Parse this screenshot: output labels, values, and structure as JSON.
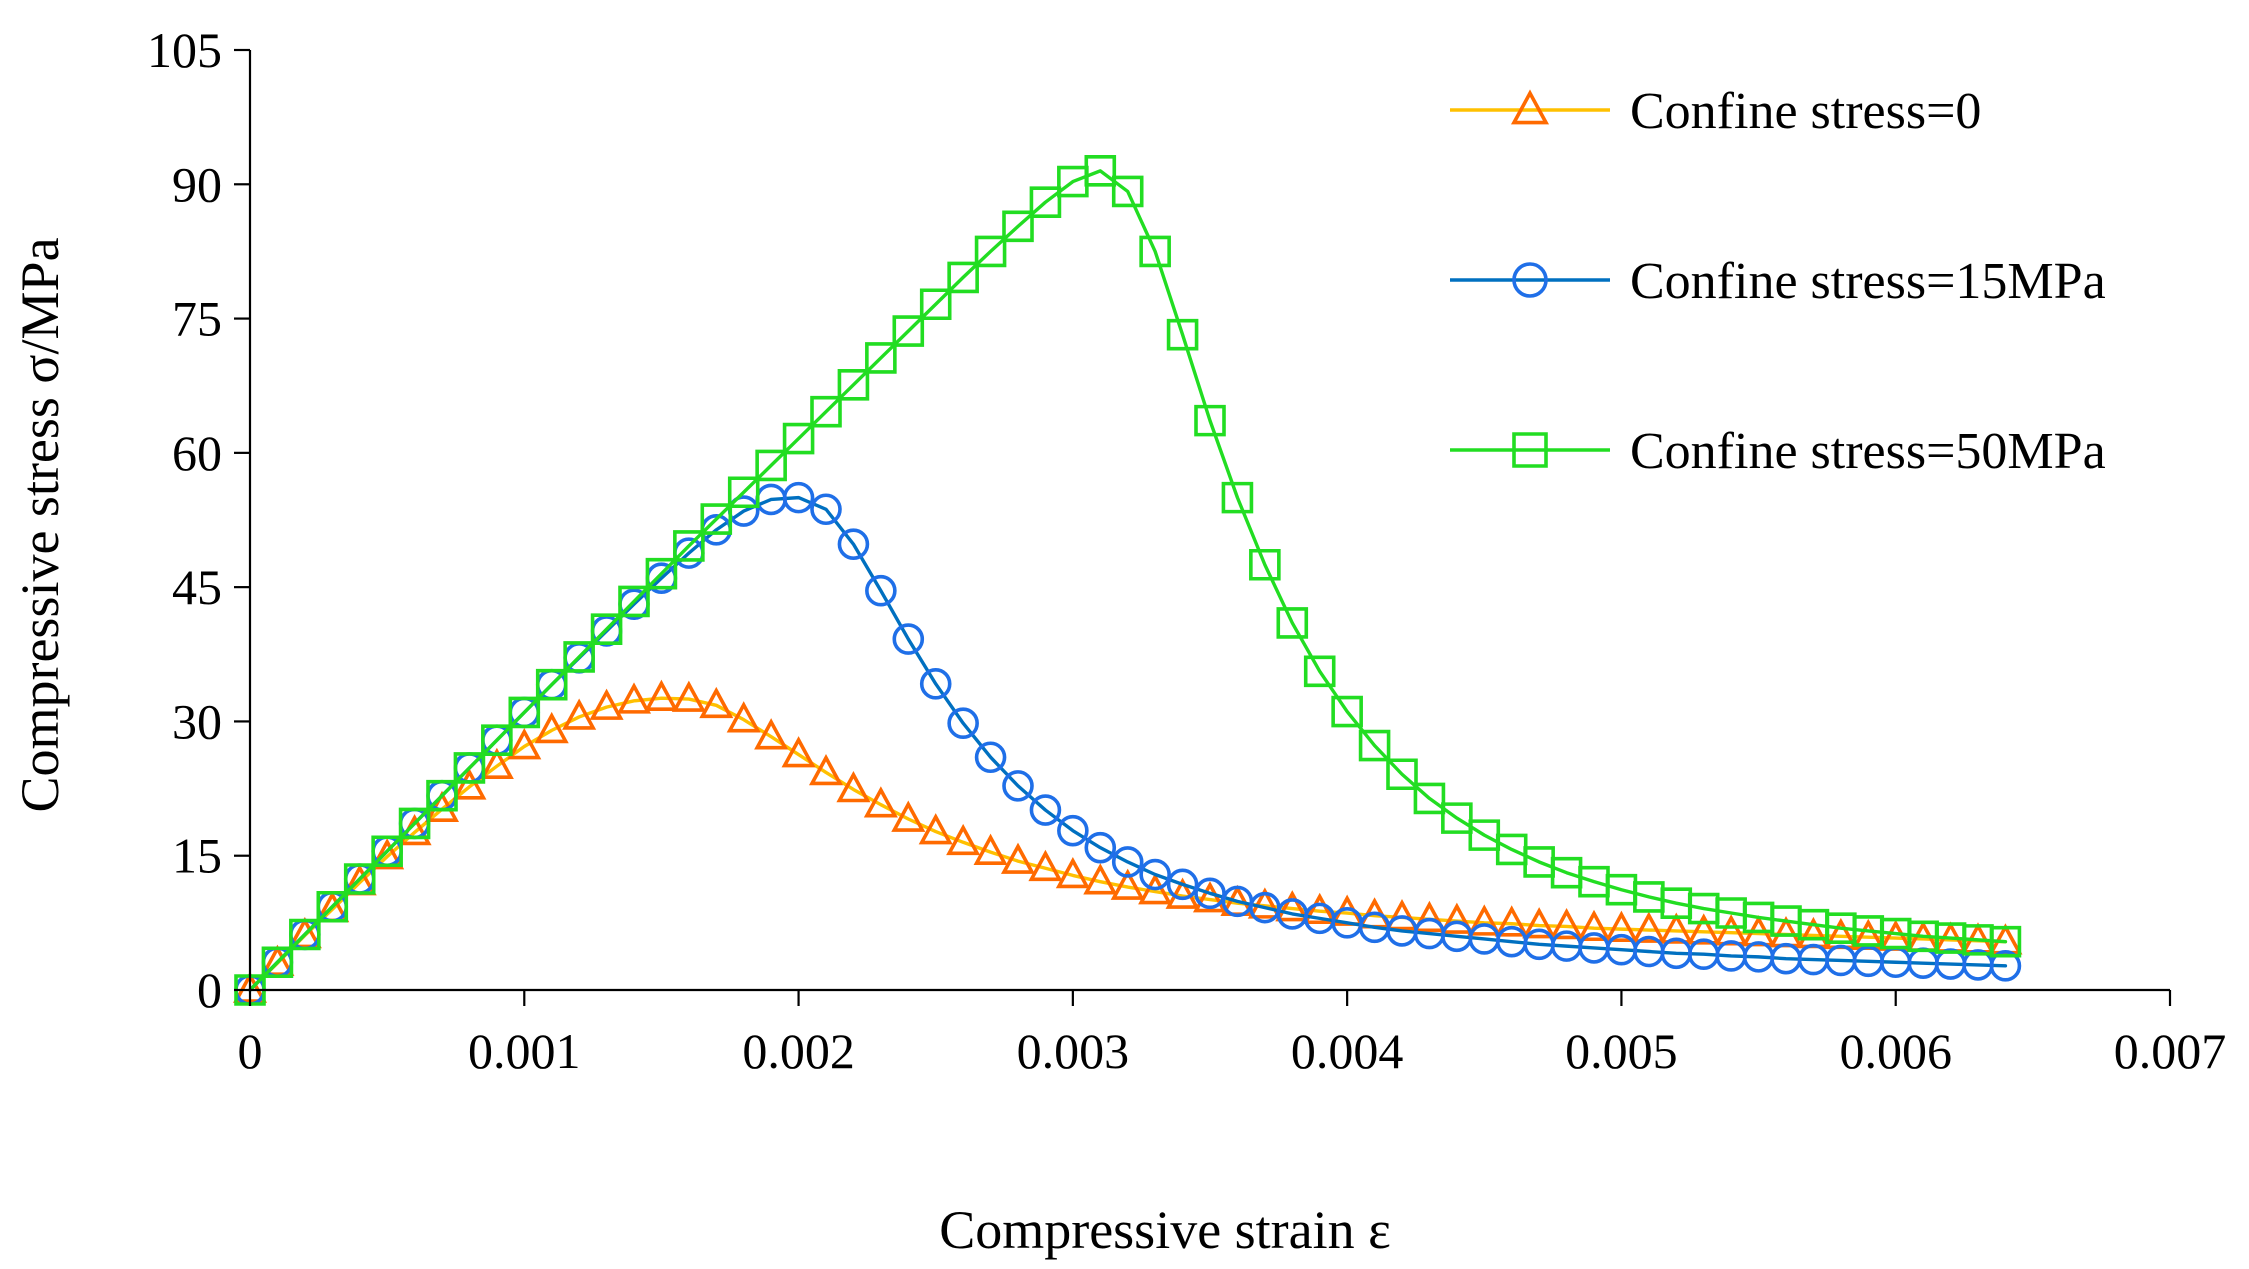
{
  "chart_data": {
    "type": "line",
    "title": "",
    "xlabel": "Compressive strain ε",
    "ylabel": "Compressive stress σ/MPa",
    "xlim": [
      0,
      0.007
    ],
    "ylim": [
      0,
      105
    ],
    "xticks": [
      0,
      0.001,
      0.002,
      0.003,
      0.004,
      0.005,
      0.006,
      0.007
    ],
    "xtick_labels": [
      "0",
      "0.001",
      "0.002",
      "0.003",
      "0.004",
      "0.005",
      "0.006",
      "0.007"
    ],
    "yticks": [
      0,
      15,
      30,
      45,
      60,
      75,
      90,
      105
    ],
    "ytick_labels": [
      "0",
      "15",
      "30",
      "45",
      "60",
      "75",
      "90",
      "105"
    ],
    "grid": false,
    "legend_position": "top-right",
    "x": [
      0.0,
      0.0001,
      0.0002,
      0.0003,
      0.0004,
      0.0005,
      0.0006,
      0.0007,
      0.0008,
      0.0009,
      0.001,
      0.0011,
      0.0012,
      0.0013,
      0.0014,
      0.0015,
      0.0016,
      0.0017,
      0.0018,
      0.0019,
      0.002,
      0.0021,
      0.0022,
      0.0023,
      0.0024,
      0.0025,
      0.0026,
      0.0027,
      0.0028,
      0.0029,
      0.003,
      0.0031,
      0.0032,
      0.0033,
      0.0034,
      0.0035,
      0.0036,
      0.0037,
      0.0038,
      0.0039,
      0.004,
      0.0041,
      0.0042,
      0.0043,
      0.0044,
      0.0045,
      0.0046,
      0.0047,
      0.0048,
      0.0049,
      0.005,
      0.0051,
      0.0052,
      0.0053,
      0.0054,
      0.0055,
      0.0056,
      0.0057,
      0.0058,
      0.0059,
      0.006,
      0.0061,
      0.0062,
      0.0063,
      0.0064
    ],
    "series": [
      {
        "name": "Confine stress=0",
        "line_color": "#FFC000",
        "marker_color": "#FF6A00",
        "marker": "triangle",
        "values": [
          0.0,
          3.0,
          6.1,
          9.0,
          12.0,
          14.9,
          17.6,
          20.2,
          22.7,
          25.0,
          27.2,
          29.0,
          30.5,
          31.6,
          32.3,
          32.6,
          32.5,
          31.8,
          30.2,
          28.3,
          26.3,
          24.3,
          22.4,
          20.7,
          19.1,
          17.7,
          16.5,
          15.4,
          14.4,
          13.6,
          12.8,
          12.1,
          11.5,
          11.0,
          10.5,
          10.1,
          9.7,
          9.4,
          9.1,
          8.8,
          8.6,
          8.3,
          8.1,
          7.9,
          7.7,
          7.5,
          7.4,
          7.2,
          7.1,
          6.9,
          6.8,
          6.7,
          6.6,
          6.5,
          6.4,
          6.3,
          6.2,
          6.1,
          6.0,
          5.9,
          5.8,
          5.7,
          5.6,
          5.5,
          5.4
        ]
      },
      {
        "name": "Confine stress=15MPa",
        "line_color": "#0070C0",
        "marker_color": "#1F6FE8",
        "marker": "circle",
        "values": [
          0.0,
          3.1,
          6.2,
          9.3,
          12.4,
          15.5,
          18.6,
          21.7,
          24.8,
          27.9,
          31.0,
          34.1,
          37.1,
          40.1,
          43.1,
          46.0,
          48.8,
          51.4,
          53.5,
          54.8,
          55.0,
          53.7,
          49.8,
          44.6,
          39.2,
          34.2,
          29.8,
          26.0,
          22.8,
          20.1,
          17.8,
          15.9,
          14.3,
          12.9,
          11.8,
          10.8,
          9.9,
          9.2,
          8.5,
          8.0,
          7.5,
          7.0,
          6.6,
          6.3,
          6.0,
          5.7,
          5.4,
          5.1,
          4.9,
          4.7,
          4.5,
          4.3,
          4.1,
          4.0,
          3.8,
          3.7,
          3.5,
          3.4,
          3.3,
          3.2,
          3.1,
          3.0,
          2.9,
          2.8,
          2.7
        ]
      },
      {
        "name": "Confine stress=50MPa",
        "line_color": "#22DD22",
        "marker_color": "#22DD22",
        "marker": "square",
        "values": [
          0.0,
          3.1,
          6.2,
          9.3,
          12.4,
          15.5,
          18.6,
          21.7,
          24.8,
          27.9,
          31.0,
          34.1,
          37.2,
          40.3,
          43.4,
          46.5,
          49.6,
          52.6,
          55.6,
          58.6,
          61.6,
          64.6,
          67.6,
          70.6,
          73.6,
          76.6,
          79.6,
          82.5,
          85.3,
          88.0,
          90.3,
          91.5,
          89.2,
          82.5,
          73.2,
          63.6,
          55.0,
          47.5,
          41.0,
          35.6,
          31.1,
          27.3,
          24.1,
          21.4,
          19.2,
          17.3,
          15.7,
          14.3,
          13.1,
          12.1,
          11.2,
          10.4,
          9.7,
          9.1,
          8.6,
          8.1,
          7.7,
          7.3,
          6.9,
          6.6,
          6.3,
          6.0,
          5.8,
          5.6,
          5.4
        ]
      }
    ]
  }
}
